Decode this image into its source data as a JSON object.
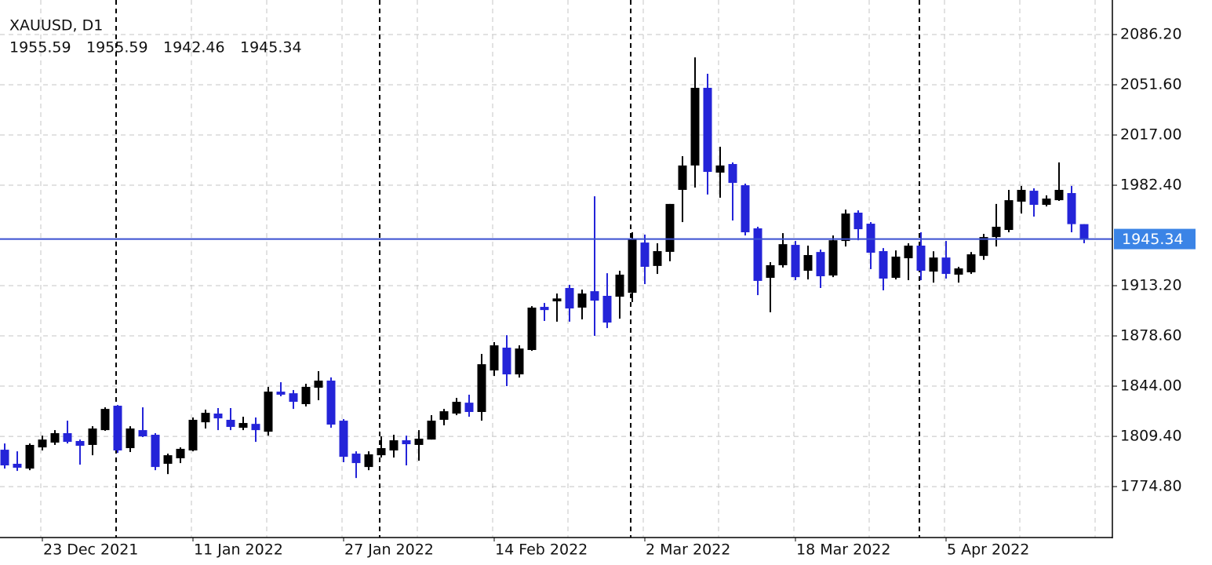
{
  "chart_data": {
    "type": "candlestick",
    "title": "XAUUSD, D1",
    "categories": [
      null,
      null,
      null,
      "23 Dec 2021",
      null,
      null,
      null,
      null,
      null,
      null,
      null,
      null,
      null,
      null,
      null,
      "11 Jan 2022",
      null,
      null,
      null,
      null,
      null,
      null,
      null,
      null,
      null,
      null,
      null,
      "27 Jan 2022",
      null,
      null,
      null,
      null,
      null,
      null,
      null,
      null,
      null,
      null,
      null,
      "14 Feb 2022",
      null,
      null,
      null,
      null,
      null,
      null,
      null,
      null,
      null,
      null,
      null,
      "2 Mar 2022",
      null,
      null,
      null,
      null,
      null,
      null,
      null,
      null,
      null,
      null,
      null,
      "18 Mar 2022",
      null,
      null,
      null,
      null,
      null,
      null,
      null,
      null,
      null,
      null,
      null,
      "5 Apr 2022",
      null,
      null,
      null,
      null,
      null,
      null,
      null,
      null,
      null,
      null,
      null
    ],
    "open": [
      1800.2,
      1790.5,
      1787.2,
      1801.8,
      1805.1,
      1811.6,
      1806.2,
      1803.5,
      1813.7,
      1830.5,
      1801.3,
      1813.7,
      1810.5,
      1790.5,
      1794.3,
      1799.7,
      1819.1,
      1825.1,
      1820.8,
      1815.3,
      1818.0,
      1812.6,
      1840.2,
      1839.1,
      1831.6,
      1842.9,
      1847.8,
      1820.2,
      1797.5,
      1788.3,
      1796.4,
      1799.7,
      1806.7,
      1803.5,
      1807.2,
      1820.8,
      1825.1,
      1832.6,
      1826.2,
      1854.8,
      1870.5,
      1852.1,
      1868.9,
      1898.6,
      1902.4,
      1911.6,
      1898.1,
      1909.4,
      1906.2,
      1905.6,
      1908.3,
      1942.9,
      1926.8,
      1936.5,
      1979.2,
      1996.0,
      2049.5,
      1991.1,
      1997.0,
      1982.4,
      1952.7,
      1918.6,
      1927.3,
      1941.3,
      1923.5,
      1936.4,
      1920.2,
      1944.0,
      1963.5,
      1955.9,
      1937.0,
      1918.6,
      1932.1,
      1940.8,
      1922.9,
      1932.6,
      1920.8,
      1922.4,
      1933.7,
      1946.7,
      1951.6,
      1971.1,
      1978.6,
      1968.9,
      1972.1,
      1977.0,
      1955.59
    ],
    "high": [
      1804.5,
      1799.1,
      1804.5,
      1809.9,
      1813.7,
      1820.2,
      1807.2,
      1816.4,
      1829.4,
      1831.0,
      1816.4,
      1829.4,
      1811.6,
      1797.5,
      1801.8,
      1822.4,
      1827.8,
      1828.9,
      1828.9,
      1822.9,
      1822.4,
      1843.5,
      1846.7,
      1841.3,
      1845.6,
      1854.3,
      1850.0,
      1821.3,
      1799.1,
      1799.1,
      1809.4,
      1810.5,
      1809.9,
      1813.7,
      1824.0,
      1828.3,
      1835.9,
      1838.1,
      1866.2,
      1874.3,
      1879.1,
      1872.1,
      1899.1,
      1901.3,
      1907.8,
      1913.8,
      1910.5,
      1974.8,
      1921.8,
      1923.5,
      1950.0,
      1948.4,
      1942.4,
      1969.5,
      2002.4,
      2070.5,
      2059.2,
      2008.9,
      1998.1,
      1983.5,
      1953.8,
      1929.4,
      1949.4,
      1944.0,
      1940.8,
      1938.1,
      1947.8,
      1965.6,
      1965.1,
      1957.0,
      1939.1,
      1937.5,
      1942.4,
      1950.0,
      1936.9,
      1944.0,
      1926.2,
      1936.4,
      1948.9,
      1969.5,
      1979.2,
      1981.9,
      1980.3,
      1975.4,
      1998.1,
      1981.9,
      1955.59
    ],
    "low": [
      1787.2,
      1785.6,
      1786.1,
      1799.7,
      1803.5,
      1804.5,
      1789.9,
      1796.4,
      1813.2,
      1798.0,
      1798.6,
      1808.9,
      1786.1,
      1783.4,
      1791.0,
      1799.1,
      1814.8,
      1813.7,
      1813.7,
      1813.7,
      1805.6,
      1809.9,
      1837.0,
      1828.3,
      1830.0,
      1834.3,
      1815.3,
      1791.6,
      1780.7,
      1786.1,
      1794.8,
      1794.8,
      1789.4,
      1792.6,
      1807.2,
      1817.0,
      1824.0,
      1822.9,
      1820.2,
      1851.0,
      1844.0,
      1849.9,
      1868.3,
      1888.9,
      1888.4,
      1888.4,
      1890.0,
      1878.6,
      1884.0,
      1890.5,
      1901.9,
      1914.3,
      1921.3,
      1930.0,
      1957.0,
      1980.8,
      1976.0,
      1973.8,
      1958.1,
      1947.8,
      1906.7,
      1894.9,
      1925.7,
      1917.0,
      1917.5,
      1911.6,
      1919.1,
      1940.2,
      1944.5,
      1924.6,
      1910.0,
      1917.5,
      1917.0,
      1917.0,
      1915.3,
      1918.1,
      1915.3,
      1921.3,
      1931.0,
      1940.2,
      1950.0,
      1962.9,
      1960.8,
      1967.8,
      1971.6,
      1950.0,
      1942.46
    ],
    "close": [
      1789.4,
      1787.8,
      1803.5,
      1807.2,
      1811.6,
      1805.6,
      1802.9,
      1814.8,
      1828.3,
      1799.7,
      1814.8,
      1809.4,
      1788.3,
      1796.4,
      1800.8,
      1820.8,
      1825.6,
      1821.8,
      1815.9,
      1818.6,
      1813.7,
      1840.2,
      1838.1,
      1833.2,
      1843.5,
      1847.8,
      1817.5,
      1795.3,
      1791.0,
      1797.0,
      1801.3,
      1806.7,
      1804.0,
      1807.8,
      1820.2,
      1826.7,
      1833.2,
      1826.2,
      1859.1,
      1872.1,
      1852.1,
      1869.9,
      1898.1,
      1896.4,
      1904.4,
      1897.5,
      1907.8,
      1902.9,
      1887.8,
      1920.8,
      1945.1,
      1926.2,
      1937.0,
      1969.5,
      1996.0,
      2049.5,
      1991.6,
      1996.0,
      1984.0,
      1950.0,
      1916.5,
      1927.3,
      1941.8,
      1919.1,
      1934.3,
      1919.7,
      1944.5,
      1962.9,
      1952.1,
      1935.9,
      1918.1,
      1933.2,
      1940.8,
      1923.5,
      1932.6,
      1921.3,
      1925.1,
      1934.8,
      1946.7,
      1953.8,
      1972.1,
      1979.2,
      1968.9,
      1973.2,
      1979.2,
      1955.6,
      1945.34
    ],
    "up_color": "#000000",
    "down_color": "#2424d8",
    "price_line_color": "#3a4fd0",
    "price_label_color": "#3b84e6",
    "ylim": [
      1739.7,
      2110.0
    ],
    "yticks": [
      {
        "value": 1774.8,
        "label": "1774.80"
      },
      {
        "value": 1809.4,
        "label": "1809.40"
      },
      {
        "value": 1844.0,
        "label": "1844.00"
      },
      {
        "value": 1878.6,
        "label": "1878.60"
      },
      {
        "value": 1913.2,
        "label": "1913.20"
      },
      {
        "value": 1982.4,
        "label": "1982.40"
      },
      {
        "value": 2017.0,
        "label": "2017.00"
      },
      {
        "value": 2051.6,
        "label": "2051.60"
      },
      {
        "value": 2086.2,
        "label": "2086.20"
      }
    ],
    "grid": true
  }
}
